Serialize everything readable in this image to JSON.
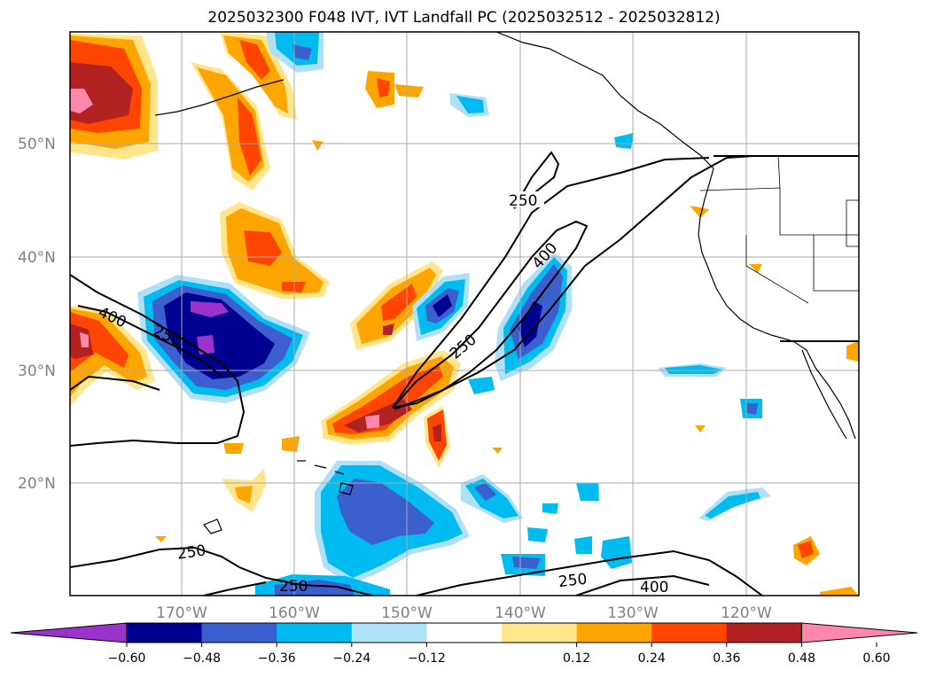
{
  "title": "2025032300 F048 IVT, IVT Landfall PC (2025032512 - 2025032812)",
  "map": {
    "lat_labels": [
      "50°N",
      "40°N",
      "30°N",
      "20°N"
    ],
    "lon_labels": [
      "170°W",
      "160°W",
      "150°W",
      "140°W",
      "130°W",
      "120°W"
    ],
    "contour_labels": [
      "250",
      "400",
      "400",
      "250",
      "250",
      "250",
      "250",
      "400"
    ]
  },
  "colorbar": {
    "ticks": [
      "−0.60",
      "−0.48",
      "−0.36",
      "−0.24",
      "−0.12",
      "0.12",
      "0.24",
      "0.36",
      "0.48",
      "0.60"
    ],
    "colors": [
      "#9933cc",
      "#000090",
      "#3b5fcc",
      "#00bbf0",
      "#aee0f7",
      "#ffffff",
      "#ffe68c",
      "#ffa500",
      "#ff4500",
      "#b22222",
      "#ff88aa"
    ]
  }
}
